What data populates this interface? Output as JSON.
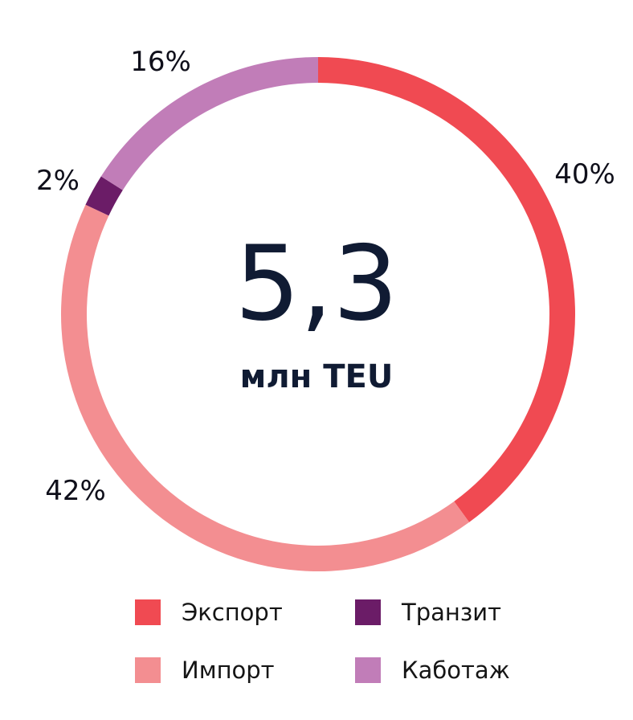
{
  "chart_data": {
    "type": "pie",
    "donut": true,
    "center": {
      "value": "5,3",
      "unit": "млн TEU"
    },
    "slices": [
      {
        "name": "Экспорт",
        "value": 40,
        "label": "40%",
        "color": "#f04a52"
      },
      {
        "name": "Импорт",
        "value": 42,
        "label": "42%",
        "color": "#f38e91"
      },
      {
        "name": "Транзит",
        "value": 2,
        "label": "2%",
        "color": "#6b1c67"
      },
      {
        "name": "Каботаж",
        "value": 16,
        "label": "16%",
        "color": "#c17db8"
      }
    ],
    "legend": {
      "placement": "bottom",
      "items": [
        {
          "name": "Экспорт",
          "color": "#f04a52"
        },
        {
          "name": "Транзит",
          "color": "#6b1c67"
        },
        {
          "name": "Импорт",
          "color": "#f38e91"
        },
        {
          "name": "Каботаж",
          "color": "#c17db8"
        }
      ]
    }
  }
}
